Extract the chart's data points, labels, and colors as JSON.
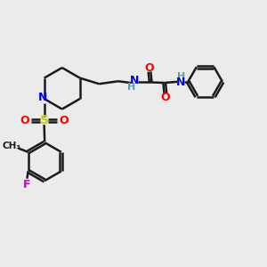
{
  "bg_color": "#ebebeb",
  "bond_color": "#1a1a1a",
  "N_color": "#0000ff",
  "O_color": "#ff0000",
  "S_color": "#cccc00",
  "F_color": "#cc00cc",
  "H_color": "#5f9ea0",
  "line_width": 1.8,
  "figsize": [
    3.0,
    3.0
  ],
  "dpi": 100,
  "xlim": [
    0,
    10
  ],
  "ylim": [
    0,
    10
  ]
}
